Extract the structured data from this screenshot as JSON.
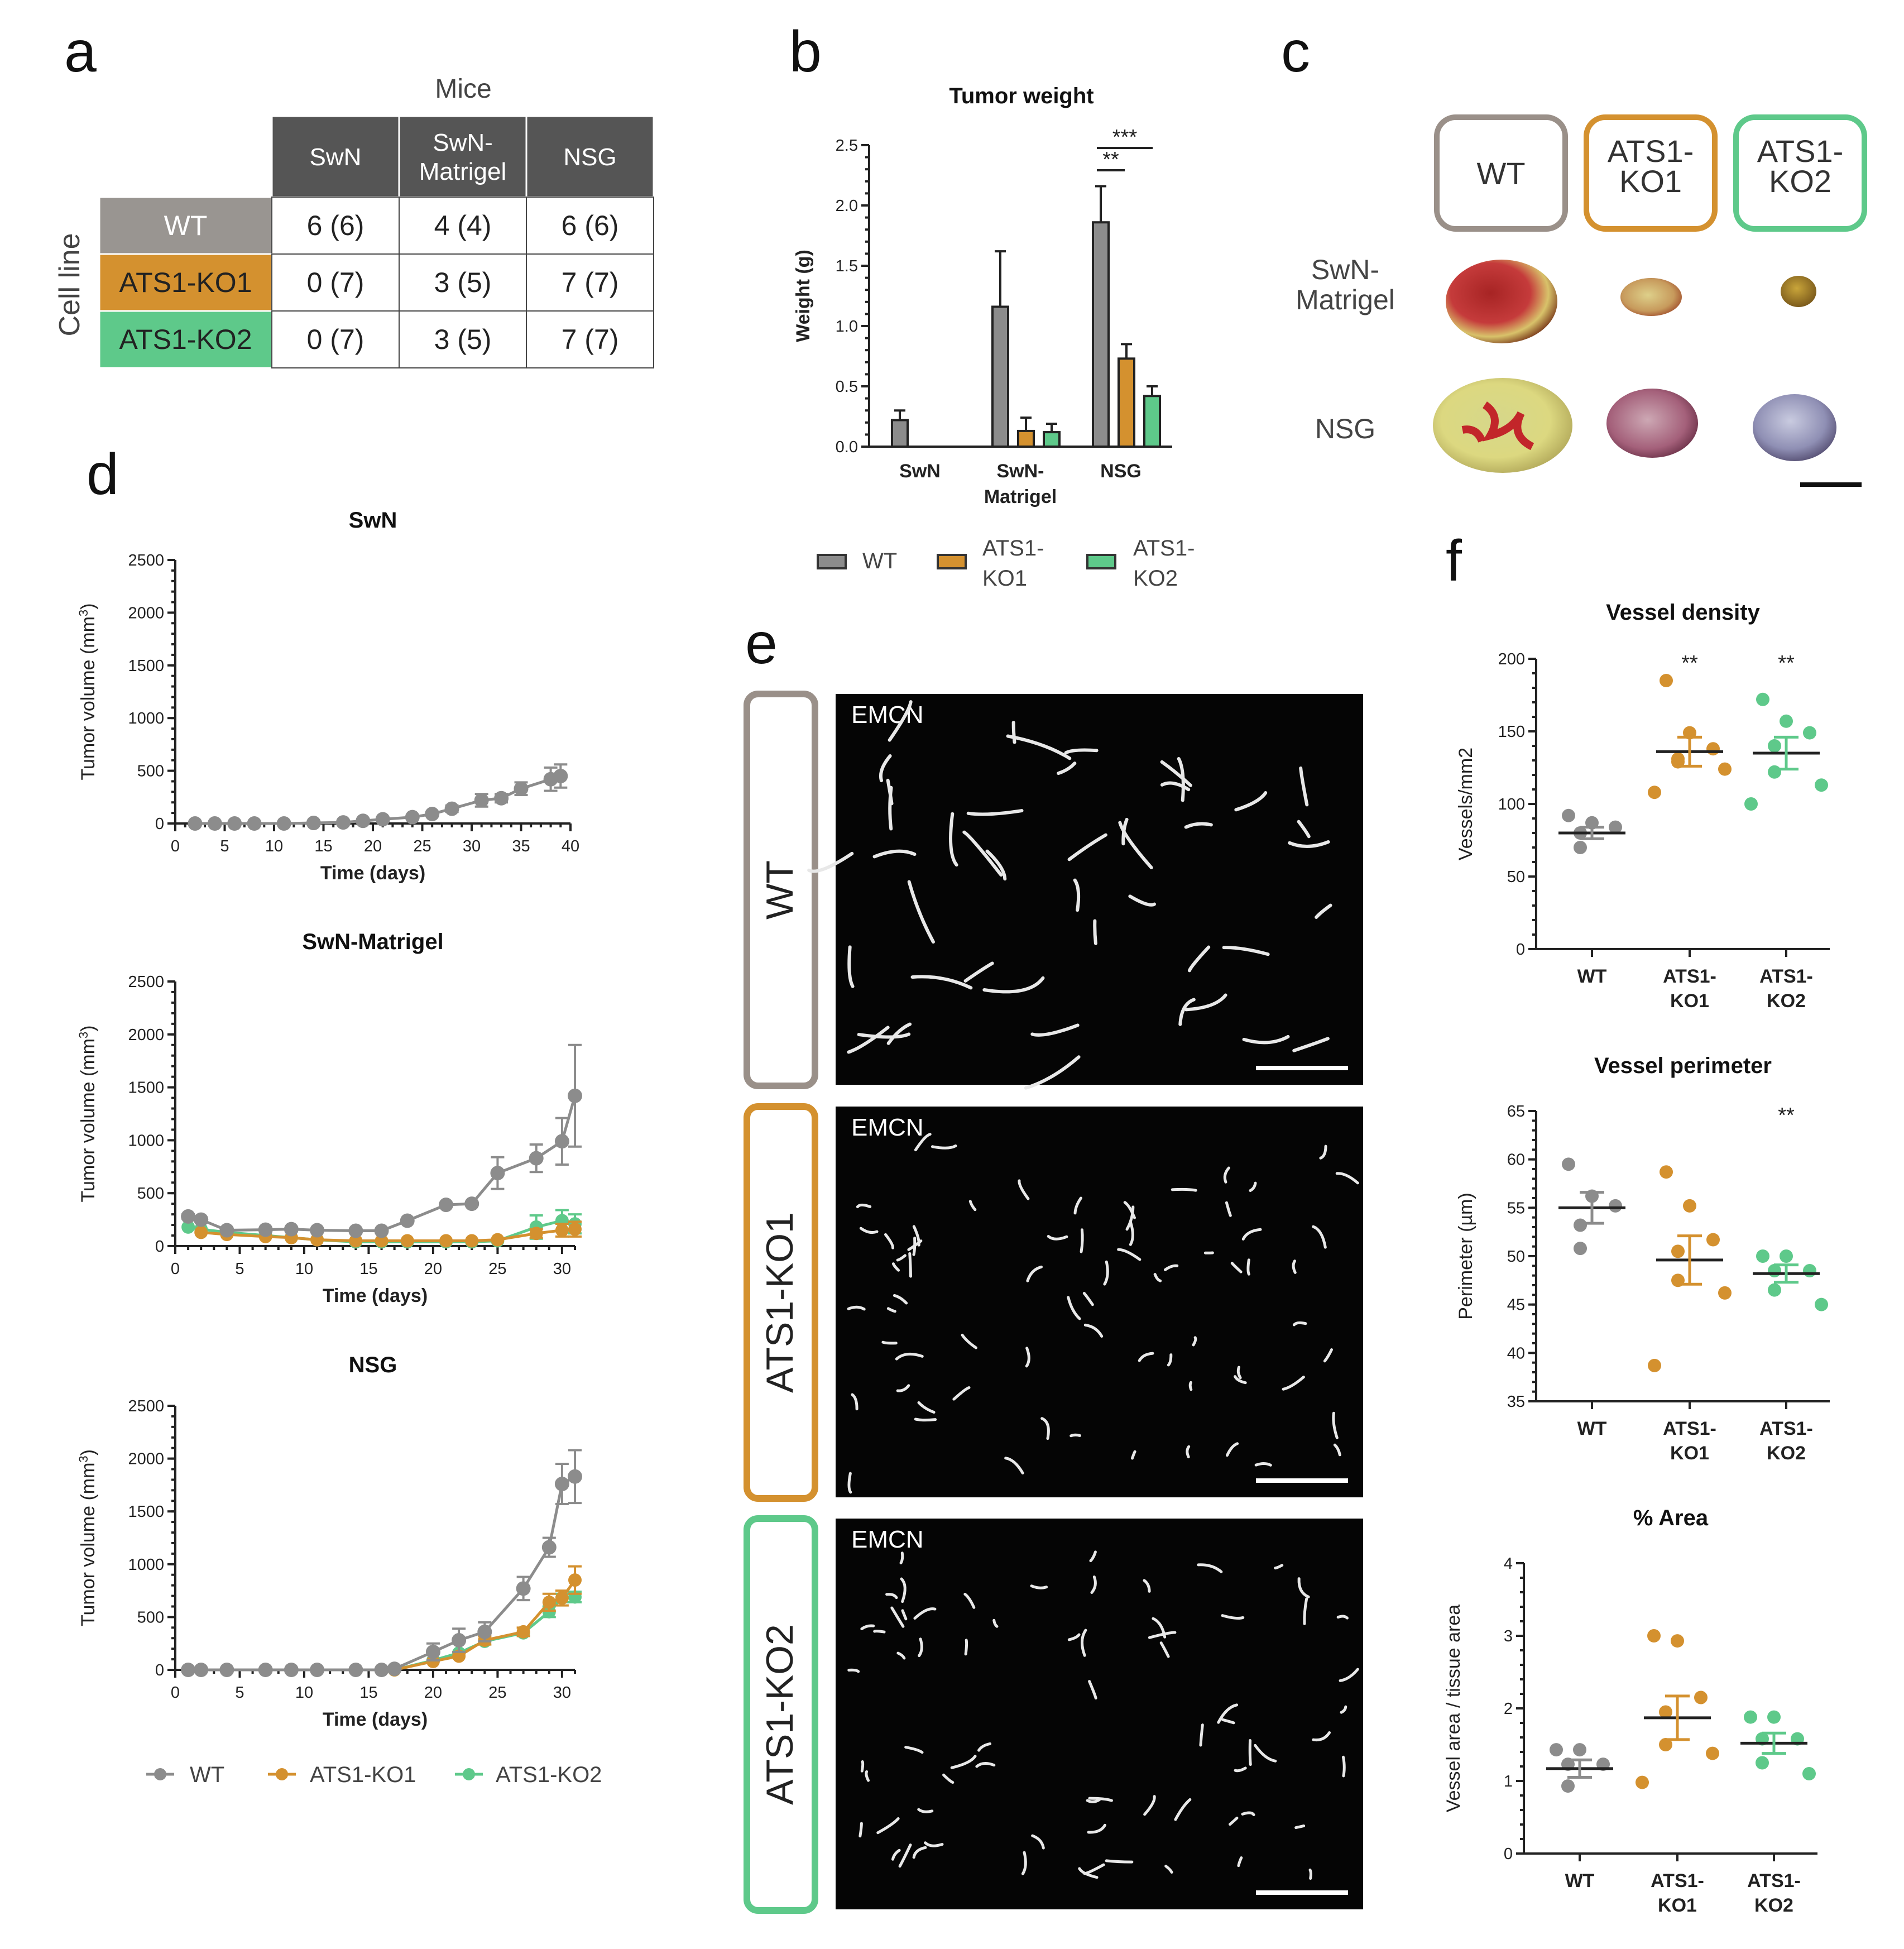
{
  "panel_labels": {
    "a": "a",
    "b": "b",
    "c": "c",
    "d": "d",
    "e": "e",
    "f": "f"
  },
  "colors": {
    "WT": "#8c8c8c",
    "KO1": "#d4912f",
    "KO2": "#5ec98a",
    "header": "#555555"
  },
  "table": {
    "title": "Mice",
    "row_axis": "Cell line",
    "columns": [
      "SwN",
      "SwN-\nMatrigel",
      "NSG"
    ],
    "rows": [
      {
        "label": "WT",
        "cells": [
          "6 (6)",
          "4 (4)",
          "6 (6)"
        ]
      },
      {
        "label": "ATS1-KO1",
        "cells": [
          "0 (7)",
          "3 (5)",
          "7 (7)"
        ]
      },
      {
        "label": "ATS1-KO2",
        "cells": [
          "0 (7)",
          "3 (5)",
          "7 (7)"
        ]
      }
    ]
  },
  "legend_b": {
    "wt": "WT",
    "ko1": "ATS1-\nKO1",
    "ko2": "ATS1-\nKO2"
  },
  "legend_d": {
    "wt": "WT",
    "ko1": "ATS1-KO1",
    "ko2": "ATS1-KO2"
  },
  "panel_c": {
    "boxes": [
      "WT",
      "ATS1-\nKO1",
      "ATS1-\nKO2"
    ],
    "rows": [
      "SwN-\nMatrigel",
      "NSG"
    ]
  },
  "panel_e": {
    "rows": [
      "WT",
      "ATS1-KO1",
      "ATS1-KO2"
    ],
    "stain": "EMCN"
  },
  "chart_data": [
    {
      "id": "b",
      "type": "bar",
      "title": "Tumor weight",
      "xlabel": "",
      "ylabel": "Weight (g)",
      "ylim": [
        0,
        2.5
      ],
      "yticks": [
        "0.0",
        "0.5",
        "1.0",
        "1.5",
        "2.0",
        "2.5"
      ],
      "categories": [
        "SwN",
        "SwN-\nMatrigel",
        "NSG"
      ],
      "series": [
        {
          "name": "WT",
          "values": [
            0.22,
            1.16,
            1.86
          ],
          "errors": [
            0.08,
            0.46,
            0.3
          ]
        },
        {
          "name": "ATS1-KO1",
          "values": [
            0,
            0.13,
            0.73
          ],
          "errors": [
            0,
            0.11,
            0.12
          ]
        },
        {
          "name": "ATS1-KO2",
          "values": [
            0,
            0.12,
            0.42
          ],
          "errors": [
            0,
            0.07,
            0.08
          ]
        }
      ],
      "annotations": [
        "***",
        "**"
      ]
    },
    {
      "id": "d1",
      "type": "line",
      "title": "SwN",
      "xlabel": "Time (days)",
      "ylabel": "Tumor volume (mm3)",
      "xlim": [
        0,
        40
      ],
      "ylim": [
        0,
        2500
      ],
      "xticks": [
        "0",
        "5",
        "10",
        "15",
        "20",
        "25",
        "30",
        "35",
        "40"
      ],
      "yticks": [
        "0",
        "500",
        "1000",
        "1500",
        "2000",
        "2500"
      ],
      "series": [
        {
          "name": "WT",
          "x": [
            2,
            4,
            6,
            8,
            11,
            14,
            17,
            19,
            21,
            24,
            26,
            28,
            31,
            33,
            35,
            38,
            39
          ],
          "y": [
            0,
            0,
            0,
            0,
            0,
            5,
            10,
            25,
            40,
            60,
            90,
            140,
            220,
            240,
            330,
            420,
            450
          ],
          "err": [
            0,
            0,
            0,
            0,
            0,
            0,
            0,
            0,
            0,
            15,
            20,
            30,
            60,
            40,
            60,
            110,
            110
          ]
        }
      ]
    },
    {
      "id": "d2",
      "type": "line",
      "title": "SwN-Matrigel",
      "xlabel": "Time (days)",
      "ylabel": "Tumor volume (mm3)",
      "xlim": [
        0,
        31
      ],
      "ylim": [
        0,
        2500
      ],
      "xticks": [
        "0",
        "5",
        "10",
        "15",
        "20",
        "25",
        "30"
      ],
      "yticks": [
        "0",
        "500",
        "1000",
        "1500",
        "2000",
        "2500"
      ],
      "series": [
        {
          "name": "WT",
          "x": [
            1,
            2,
            4,
            7,
            9,
            11,
            14,
            16,
            18,
            21,
            23,
            25,
            28,
            30,
            31
          ],
          "y": [
            280,
            250,
            150,
            155,
            160,
            150,
            145,
            145,
            240,
            390,
            400,
            690,
            830,
            990,
            1420
          ],
          "err": [
            20,
            20,
            0,
            0,
            0,
            0,
            0,
            0,
            0,
            0,
            0,
            150,
            130,
            220,
            480
          ]
        },
        {
          "name": "ATS1-KO1",
          "x": [
            2,
            4,
            7,
            9,
            11,
            14,
            16,
            18,
            21,
            23,
            25,
            28,
            30,
            31
          ],
          "y": [
            130,
            110,
            90,
            80,
            60,
            50,
            50,
            50,
            50,
            50,
            60,
            120,
            150,
            160
          ],
          "err": [
            0,
            0,
            0,
            0,
            0,
            0,
            0,
            0,
            0,
            0,
            0,
            40,
            60,
            70
          ]
        },
        {
          "name": "ATS1-KO2",
          "x": [
            1,
            2,
            4,
            7,
            9,
            11,
            14,
            16,
            18,
            21,
            23,
            25,
            28,
            30,
            31
          ],
          "y": [
            180,
            160,
            130,
            100,
            80,
            60,
            40,
            40,
            40,
            40,
            40,
            50,
            180,
            240,
            210
          ],
          "err": [
            0,
            0,
            0,
            0,
            0,
            0,
            0,
            0,
            0,
            0,
            0,
            0,
            110,
            100,
            90
          ]
        }
      ]
    },
    {
      "id": "d3",
      "type": "line",
      "title": "NSG",
      "xlabel": "Time (days)",
      "ylabel": "Tumor volume (mm3)",
      "xlim": [
        0,
        31
      ],
      "ylim": [
        0,
        2500
      ],
      "xticks": [
        "0",
        "5",
        "10",
        "15",
        "20",
        "25",
        "30"
      ],
      "yticks": [
        "0",
        "500",
        "1000",
        "1500",
        "2000",
        "2500"
      ],
      "series": [
        {
          "name": "WT",
          "x": [
            1,
            2,
            4,
            7,
            9,
            11,
            14,
            16,
            17,
            20,
            22,
            24,
            27,
            29,
            30,
            31
          ],
          "y": [
            0,
            0,
            0,
            0,
            0,
            0,
            0,
            0,
            10,
            170,
            280,
            360,
            770,
            1160,
            1760,
            1830
          ],
          "err": [
            0,
            0,
            0,
            0,
            0,
            0,
            0,
            0,
            0,
            80,
            110,
            90,
            110,
            90,
            190,
            250
          ]
        },
        {
          "name": "ATS1-KO1",
          "x": [
            17,
            20,
            22,
            24,
            27,
            29,
            30,
            31
          ],
          "y": [
            0,
            80,
            130,
            280,
            360,
            640,
            680,
            850
          ],
          "err": [
            0,
            0,
            0,
            40,
            40,
            80,
            70,
            130
          ]
        },
        {
          "name": "ATS1-KO2",
          "x": [
            17,
            20,
            22,
            24,
            27,
            29,
            30,
            31
          ],
          "y": [
            0,
            90,
            160,
            270,
            350,
            550,
            680,
            690
          ],
          "err": [
            0,
            0,
            0,
            0,
            0,
            50,
            40,
            50
          ]
        }
      ]
    },
    {
      "id": "f1",
      "type": "scatter",
      "title": "Vessel density",
      "ylabel": "Vessels/mm2",
      "ylim": [
        0,
        200
      ],
      "yticks": [
        "0",
        "50",
        "100",
        "150",
        "200"
      ],
      "categories": [
        "WT",
        "ATS1-\nKO1",
        "ATS1-\nKO2"
      ],
      "points": [
        [
          92,
          87,
          84,
          80,
          70
        ],
        [
          185,
          149,
          138,
          131,
          129,
          124,
          108
        ],
        [
          172,
          157,
          149,
          140,
          122,
          113,
          100
        ]
      ],
      "means": [
        80,
        136,
        135
      ],
      "sem": [
        4,
        10,
        11
      ],
      "annotations": [
        "",
        "**",
        "**"
      ]
    },
    {
      "id": "f2",
      "type": "scatter",
      "title": "Vessel perimeter",
      "ylabel": "Perimeter (µm)",
      "ylim": [
        35,
        65
      ],
      "yticks": [
        "35",
        "40",
        "45",
        "50",
        "55",
        "60",
        "65"
      ],
      "categories": [
        "WT",
        "ATS1-\nKO1",
        "ATS1-\nKO2"
      ],
      "points": [
        [
          59.5,
          56.2,
          55.2,
          53.2,
          50.8
        ],
        [
          58.7,
          55.2,
          51.7,
          50.5,
          47.5,
          46.2,
          38.7
        ],
        [
          50,
          50,
          48.5,
          48.5,
          46.5,
          45
        ]
      ],
      "means": [
        55,
        49.6,
        48.2
      ],
      "sem": [
        1.6,
        2.5,
        0.9
      ],
      "annotations": [
        "",
        "",
        "**"
      ]
    },
    {
      "id": "f3",
      "type": "scatter",
      "title": "% Area",
      "ylabel": "Vessel area / tissue area",
      "ylim": [
        0,
        4
      ],
      "yticks": [
        "0",
        "1",
        "2",
        "3",
        "4"
      ],
      "categories": [
        "WT",
        "ATS1-\nKO1",
        "ATS1-\nKO2"
      ],
      "points": [
        [
          1.43,
          1.43,
          1.23,
          1.23,
          0.93
        ],
        [
          3.0,
          2.93,
          2.15,
          1.95,
          1.5,
          1.38,
          0.98
        ],
        [
          1.88,
          1.88,
          1.58,
          1.58,
          1.25,
          1.1
        ]
      ],
      "means": [
        1.17,
        1.87,
        1.52
      ],
      "sem": [
        0.12,
        0.3,
        0.14
      ],
      "annotations": [
        "",
        "",
        ""
      ]
    }
  ]
}
